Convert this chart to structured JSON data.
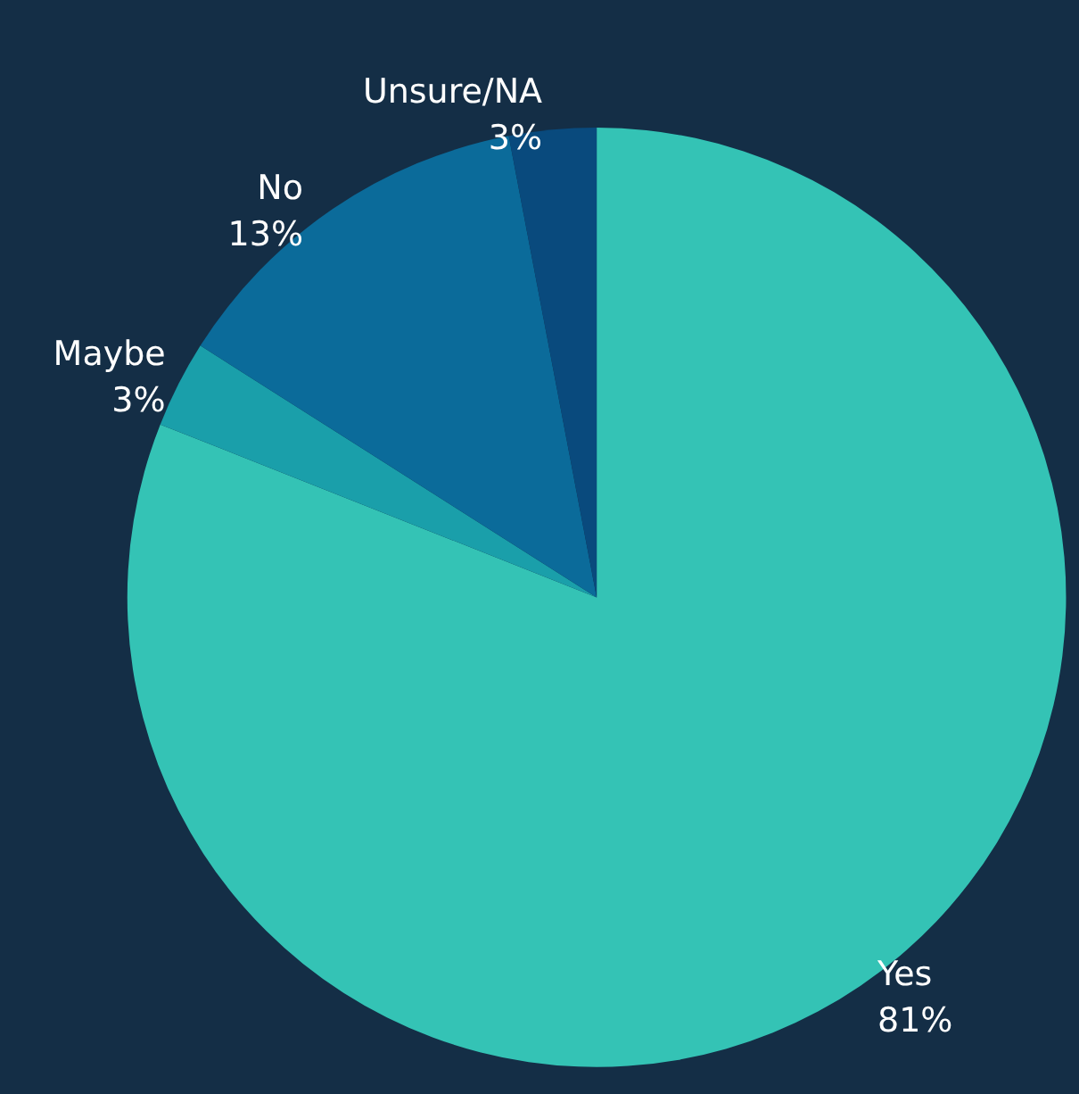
{
  "chart_data": {
    "type": "pie",
    "categories": [
      "Yes",
      "Maybe",
      "No",
      "Unsure/NA"
    ],
    "values": [
      81,
      3,
      13,
      3
    ],
    "value_labels": [
      "81%",
      "3%",
      "13%",
      "3%"
    ],
    "colors": [
      "#34c3b5",
      "#1a9faa",
      "#0b6b9a",
      "#094a7d"
    ],
    "legend": false
  }
}
